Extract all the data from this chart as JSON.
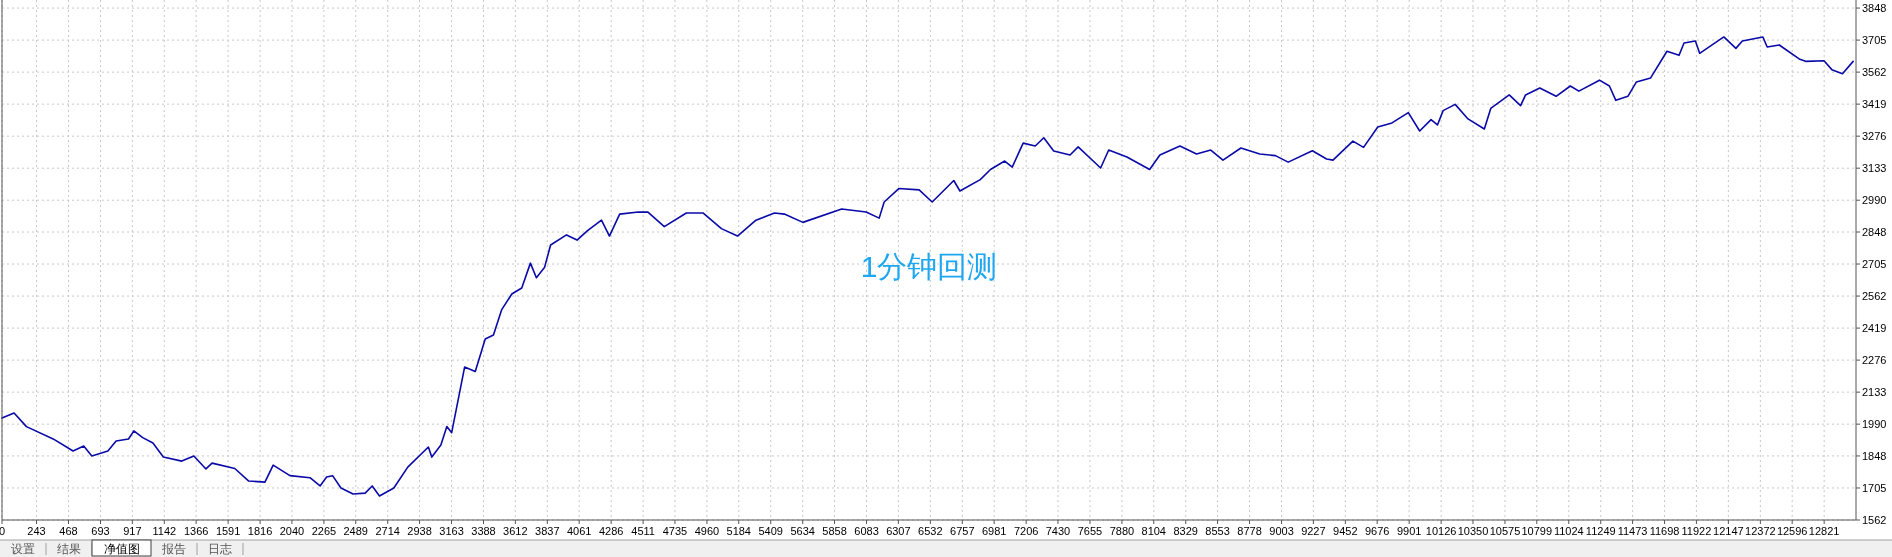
{
  "chart_data": {
    "type": "line",
    "x": [
      0,
      85,
      172,
      360,
      500,
      575,
      632,
      745,
      803,
      890,
      928,
      990,
      1062,
      1135,
      1265,
      1350,
      1435,
      1478,
      1638,
      1736,
      1850,
      1908,
      2026,
      2167,
      2238,
      2284,
      2326,
      2385,
      2470,
      2555,
      2605,
      2656,
      2757,
      2855,
      3000,
      3024,
      3088,
      3130,
      3164,
      3255,
      3330,
      3400,
      3458,
      3515,
      3587,
      3657,
      3718,
      3760,
      3818,
      3860,
      3972,
      4046,
      4120,
      4218,
      4274,
      4346,
      4478,
      4545,
      4660,
      4815,
      4932,
      5062,
      5175,
      5305,
      5435,
      5505,
      5635,
      5908,
      6080,
      6172,
      6207,
      6310,
      6453,
      6545,
      6697,
      6740,
      6883,
      6955,
      7055,
      7108,
      7185,
      7270,
      7330,
      7400,
      7515,
      7572,
      7730,
      7787,
      7915,
      8075,
      8147,
      8288,
      8405,
      8505,
      8591,
      8717,
      8850,
      8960,
      9050,
      9220,
      9320,
      9365,
      9505,
      9580,
      9680,
      9780,
      9895,
      9975,
      10055,
      10100,
      10140,
      10225,
      10315,
      10430,
      10475,
      10605,
      10685,
      10720,
      10820,
      10935,
      11035,
      11095,
      11240,
      11310,
      11355,
      11440,
      11500,
      11600,
      11715,
      11800,
      11835,
      11915,
      11945,
      12115,
      12200,
      12245,
      12390,
      12420,
      12505,
      12650,
      12690,
      12820,
      12875,
      12950,
      13025
    ],
    "series": [
      {
        "color": "#0a0aa8",
        "values": [
          2017,
          2040,
          1979,
          1924,
          1870,
          1892,
          1848,
          1870,
          1915,
          1924,
          1960,
          1930,
          1906,
          1843,
          1825,
          1848,
          1790,
          1816,
          1792,
          1736,
          1731,
          1807,
          1760,
          1751,
          1714,
          1754,
          1760,
          1705,
          1678,
          1682,
          1714,
          1669,
          1705,
          1798,
          1888,
          1843,
          1897,
          1979,
          1952,
          2245,
          2225,
          2370,
          2388,
          2500,
          2571,
          2598,
          2709,
          2644,
          2691,
          2790,
          2835,
          2812,
          2854,
          2901,
          2830,
          2928,
          2937,
          2937,
          2872,
          2933,
          2933,
          2863,
          2830,
          2901,
          2933,
          2928,
          2891,
          2951,
          2937,
          2910,
          2982,
          3042,
          3036,
          2982,
          3078,
          3031,
          3082,
          3127,
          3165,
          3138,
          3245,
          3232,
          3269,
          3210,
          3192,
          3228,
          3134,
          3214,
          3183,
          3127,
          3192,
          3232,
          3196,
          3214,
          3169,
          3223,
          3196,
          3189,
          3160,
          3211,
          3174,
          3169,
          3254,
          3226,
          3317,
          3335,
          3381,
          3299,
          3350,
          3326,
          3390,
          3418,
          3353,
          3308,
          3400,
          3460,
          3412,
          3460,
          3491,
          3454,
          3500,
          3477,
          3526,
          3500,
          3436,
          3454,
          3518,
          3536,
          3655,
          3637,
          3692,
          3701,
          3646,
          3719,
          3668,
          3701,
          3719,
          3674,
          3683,
          3619,
          3610,
          3613,
          3573,
          3555,
          3610
        ]
      }
    ],
    "xlim": [
      0,
      13045
    ],
    "xticks": [
      0,
      243,
      468,
      693,
      917,
      1142,
      1366,
      1591,
      1816,
      2040,
      2265,
      2489,
      2714,
      2938,
      3163,
      3388,
      3612,
      3837,
      4061,
      4286,
      4511,
      4735,
      4960,
      5184,
      5409,
      5634,
      5858,
      6083,
      6307,
      6532,
      6757,
      6981,
      7206,
      7430,
      7655,
      7880,
      8104,
      8329,
      8553,
      8778,
      9003,
      9227,
      9452,
      9676,
      9901,
      10126,
      10350,
      10575,
      10799,
      11024,
      11249,
      11473,
      11698,
      11922,
      12147,
      12372,
      12596,
      12821
    ],
    "ylim": [
      1562,
      3884
    ],
    "yticks": [
      1562,
      1705,
      1848,
      1990,
      2133,
      2276,
      2419,
      2562,
      2705,
      2848,
      2990,
      3133,
      3276,
      3419,
      3562,
      3705,
      3848
    ],
    "grid": true,
    "annotations": [
      "1分钟回测",
      "设置",
      "结果",
      "净值图",
      "报告",
      "日志"
    ]
  }
}
